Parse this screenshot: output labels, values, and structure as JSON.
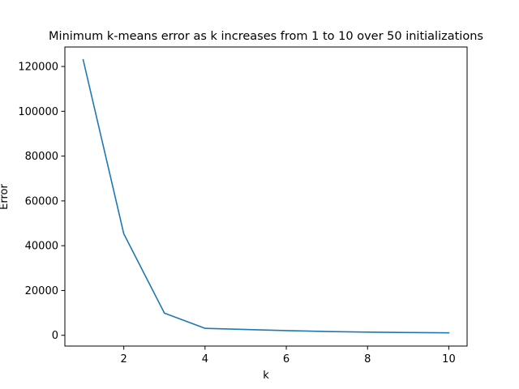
{
  "chart_data": {
    "type": "line",
    "title": "Minimum k-means error as k increases from 1 to 10 over 50 initializations",
    "xlabel": "k",
    "ylabel": "Error",
    "xlim": [
      0.55,
      10.45
    ],
    "ylim": [
      -4800,
      128700
    ],
    "xticks": [
      2,
      4,
      6,
      8,
      10
    ],
    "yticks": [
      0,
      20000,
      40000,
      60000,
      80000,
      100000,
      120000
    ],
    "grid": false,
    "series": [
      {
        "color": "#1f77b4",
        "x": [
          1,
          2,
          3,
          4,
          5,
          6,
          7,
          8,
          9,
          10
        ],
        "y": [
          123000,
          45300,
          9900,
          3100,
          2600,
          2100,
          1700,
          1400,
          1250,
          1100
        ]
      }
    ]
  }
}
